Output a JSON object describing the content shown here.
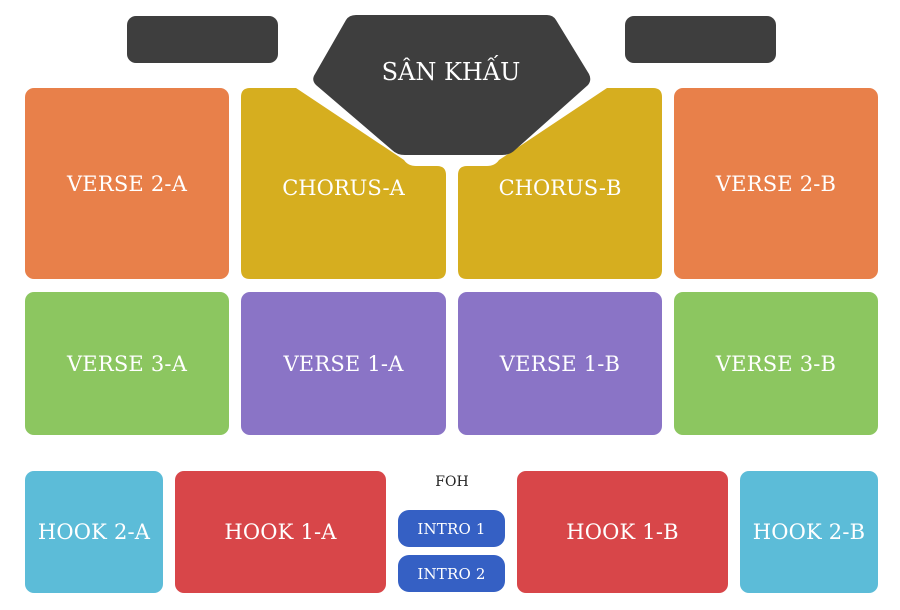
{
  "stage": {
    "label": "SÂN KHẤU",
    "color": "#3e3e3e"
  },
  "booths": [
    {
      "name": "left-booth",
      "color": "#3e3e3e"
    },
    {
      "name": "right-booth",
      "color": "#3e3e3e"
    }
  ],
  "zones": {
    "verse2a": "VERSE 2-A",
    "chorusa": "CHORUS-A",
    "chorusb": "CHORUS-B",
    "verse2b": "VERSE 2-B",
    "verse3a": "VERSE 3-A",
    "verse1a": "VERSE 1-A",
    "verse1b": "VERSE 1-B",
    "verse3b": "VERSE 3-B",
    "hook2a": "HOOK 2-A",
    "hook1a": "HOOK 1-A",
    "hook1b": "HOOK 1-B",
    "hook2b": "HOOK 2-B",
    "intro1": "INTRO 1",
    "intro2": "INTRO 2"
  },
  "foh": {
    "label": "FOH"
  },
  "colors": {
    "verse2": "#e8804a",
    "chorus": "#d6ae1f",
    "verse3": "#8cc660",
    "verse1": "#8a74c6",
    "hook2": "#5cbcd8",
    "hook1": "#d84649",
    "intro": "#3560c4"
  }
}
